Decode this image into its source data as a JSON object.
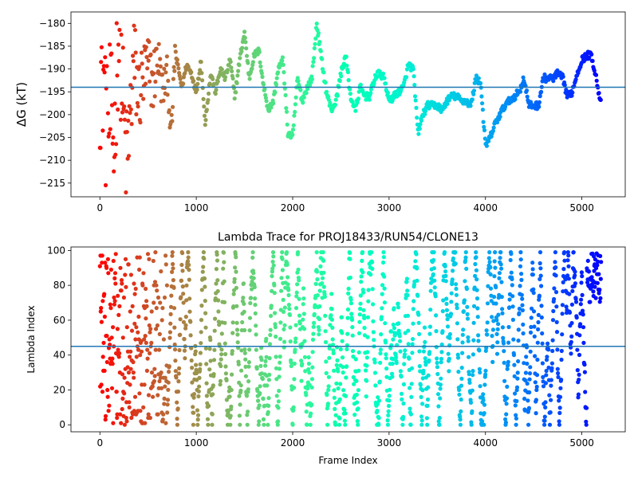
{
  "chart_data": [
    {
      "type": "scatter",
      "panel": "top",
      "title": "",
      "xlabel": "",
      "ylabel": "ΔG (kT)",
      "xlim": [
        -300,
        5450
      ],
      "ylim": [
        -218,
        -177.5
      ],
      "xticks": [
        0,
        1000,
        2000,
        3000,
        4000,
        5000
      ],
      "yticks": [
        -215,
        -210,
        -205,
        -200,
        -195,
        -190,
        -185,
        -180
      ],
      "hline": -194,
      "hline_color": "#1f77b4",
      "colormap": "rainbow (red at frame 0 → purple at last frame)",
      "grid": false,
      "trace_points": [
        [
          0,
          -190
        ],
        [
          40,
          -190
        ],
        [
          60,
          -200
        ],
        [
          80,
          -208
        ],
        [
          100,
          -199
        ],
        [
          120,
          -202
        ],
        [
          150,
          -207
        ],
        [
          180,
          -186
        ],
        [
          200,
          -182
        ],
        [
          230,
          -193
        ],
        [
          260,
          -206
        ],
        [
          280,
          -211
        ],
        [
          320,
          -199
        ],
        [
          350,
          -188
        ],
        [
          400,
          -196
        ],
        [
          450,
          -192
        ],
        [
          500,
          -190
        ],
        [
          550,
          -193
        ],
        [
          600,
          -187
        ],
        [
          650,
          -195
        ],
        [
          700,
          -191
        ],
        [
          740,
          -205
        ],
        [
          780,
          -186
        ],
        [
          850,
          -194
        ],
        [
          900,
          -189
        ],
        [
          950,
          -191
        ],
        [
          1000,
          -195
        ],
        [
          1050,
          -188
        ],
        [
          1090,
          -202
        ],
        [
          1150,
          -191
        ],
        [
          1200,
          -195
        ],
        [
          1250,
          -190
        ],
        [
          1300,
          -192
        ],
        [
          1350,
          -188
        ],
        [
          1400,
          -196
        ],
        [
          1450,
          -188
        ],
        [
          1500,
          -182
        ],
        [
          1550,
          -192
        ],
        [
          1600,
          -187
        ],
        [
          1650,
          -186
        ],
        [
          1700,
          -194
        ],
        [
          1750,
          -199
        ],
        [
          1800,
          -197
        ],
        [
          1850,
          -190
        ],
        [
          1900,
          -188
        ],
        [
          1950,
          -204
        ],
        [
          2000,
          -205
        ],
        [
          2050,
          -192
        ],
        [
          2100,
          -197
        ],
        [
          2150,
          -194
        ],
        [
          2200,
          -192
        ],
        [
          2250,
          -180
        ],
        [
          2300,
          -188
        ],
        [
          2350,
          -195
        ],
        [
          2400,
          -199
        ],
        [
          2450,
          -197
        ],
        [
          2500,
          -191
        ],
        [
          2550,
          -187
        ],
        [
          2600,
          -196
        ],
        [
          2650,
          -199
        ],
        [
          2700,
          -194
        ],
        [
          2750,
          -196
        ],
        [
          2800,
          -196
        ],
        [
          2850,
          -192
        ],
        [
          2900,
          -191
        ],
        [
          2950,
          -192
        ],
        [
          3000,
          -197
        ],
        [
          3050,
          -196
        ],
        [
          3100,
          -195
        ],
        [
          3150,
          -194
        ],
        [
          3200,
          -189
        ],
        [
          3250,
          -190
        ],
        [
          3300,
          -204
        ],
        [
          3350,
          -200
        ],
        [
          3400,
          -198
        ],
        [
          3450,
          -198
        ],
        [
          3500,
          -198
        ],
        [
          3550,
          -199
        ],
        [
          3600,
          -197
        ],
        [
          3650,
          -196
        ],
        [
          3700,
          -196
        ],
        [
          3750,
          -197
        ],
        [
          3800,
          -197
        ],
        [
          3850,
          -198
        ],
        [
          3900,
          -192
        ],
        [
          3950,
          -193
        ],
        [
          4000,
          -207
        ],
        [
          4050,
          -205
        ],
        [
          4100,
          -202
        ],
        [
          4150,
          -200
        ],
        [
          4200,
          -198
        ],
        [
          4250,
          -197
        ],
        [
          4300,
          -196
        ],
        [
          4350,
          -195
        ],
        [
          4400,
          -192
        ],
        [
          4450,
          -198
        ],
        [
          4500,
          -198
        ],
        [
          4550,
          -198
        ],
        [
          4600,
          -192
        ],
        [
          4650,
          -192
        ],
        [
          4700,
          -192
        ],
        [
          4750,
          -191
        ],
        [
          4800,
          -192
        ],
        [
          4850,
          -196
        ],
        [
          4900,
          -195
        ],
        [
          4950,
          -191
        ],
        [
          5000,
          -188
        ],
        [
          5050,
          -187
        ],
        [
          5100,
          -187
        ],
        [
          5150,
          -192
        ],
        [
          5200,
          -198
        ]
      ]
    },
    {
      "type": "scatter",
      "panel": "bottom",
      "title": "Lambda Trace for PROJ18433/RUN54/CLONE13",
      "xlabel": "Frame Index",
      "ylabel": "Lambda Index",
      "xlim": [
        -300,
        5450
      ],
      "ylim": [
        -4,
        102
      ],
      "xticks": [
        0,
        1000,
        2000,
        3000,
        4000,
        5000
      ],
      "yticks": [
        0,
        20,
        40,
        60,
        80,
        100
      ],
      "hline": 45,
      "hline_color": "#1f77b4",
      "colormap": "rainbow (red at frame 0 → purple at last frame)",
      "grid": false,
      "n_frames": 5200
    }
  ]
}
